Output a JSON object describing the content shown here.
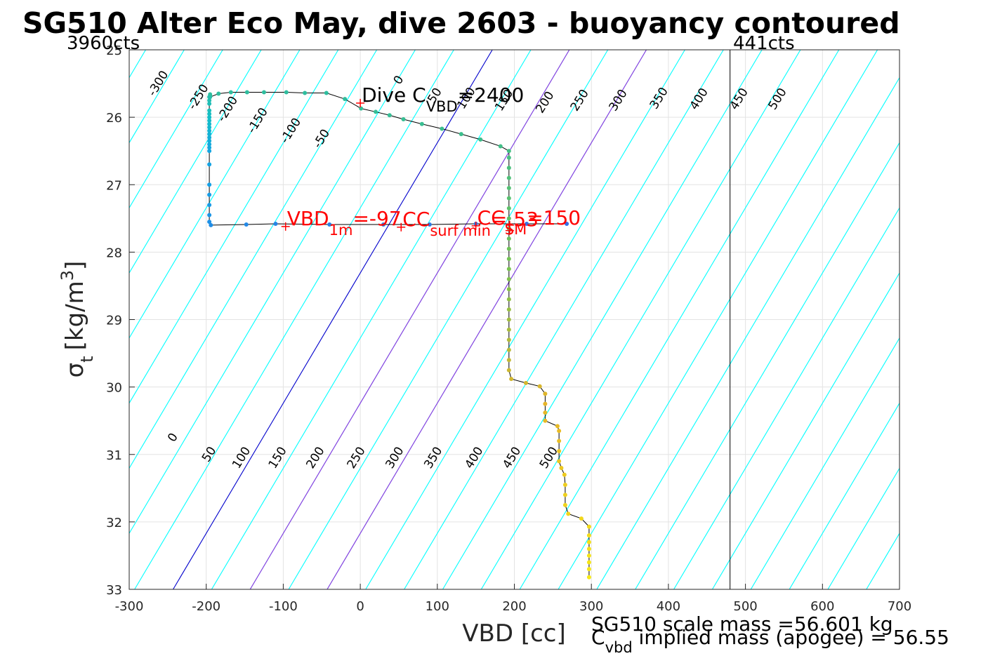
{
  "chart_data": {
    "type": "scatter",
    "title": "SG510 Alter Eco May, dive 2603 - buoyancy contoured",
    "xlabel": "VBD [cc]",
    "ylabel_main": "σ",
    "ylabel_sub": "t",
    "ylabel_unit_pre": "[kg/m",
    "ylabel_unit_sup": "3",
    "ylabel_unit_post": "]",
    "xlim": [
      -300,
      700
    ],
    "ylim": [
      25,
      33
    ],
    "y_reversed": true,
    "grid": true,
    "xticks": [
      -300,
      -200,
      -100,
      0,
      100,
      200,
      300,
      400,
      500,
      600,
      700
    ],
    "yticks": [
      25,
      26,
      27,
      28,
      29,
      30,
      31,
      32,
      33
    ],
    "corner_labels": {
      "left": "3960cts",
      "right": "441cts"
    },
    "vbd_limit_x": 480,
    "contour_lines": {
      "cyan_values": [
        -450,
        -400,
        -350,
        -300,
        -250,
        -200,
        -150,
        -100,
        -50,
        50,
        100,
        150,
        200,
        250,
        300,
        350,
        400,
        450,
        500,
        550,
        600,
        650,
        700,
        750,
        800,
        850,
        900,
        950
      ],
      "blue_values": [
        0
      ],
      "purple_values": [
        100,
        200
      ],
      "color_cyan": "#00ffff",
      "color_blue": "#0000cc",
      "color_purple": "#9933dd"
    },
    "contour_labels": [
      {
        "text": "-300",
        "x": -262,
        "y": 25.5
      },
      {
        "text": "-250",
        "x": -210,
        "y": 25.7
      },
      {
        "text": "-200",
        "x": -172,
        "y": 25.88
      },
      {
        "text": "-150",
        "x": -133,
        "y": 26.05
      },
      {
        "text": "-100",
        "x": -90,
        "y": 26.2
      },
      {
        "text": "-50",
        "x": -50,
        "y": 26.32
      },
      {
        "text": "0",
        "x": 50,
        "y": 25.45
      },
      {
        "text": "50",
        "x": 97,
        "y": 25.68
      },
      {
        "text": "100",
        "x": 138,
        "y": 25.72
      },
      {
        "text": "150",
        "x": 187,
        "y": 25.75
      },
      {
        "text": "200",
        "x": 240,
        "y": 25.78
      },
      {
        "text": "250",
        "x": 285,
        "y": 25.75
      },
      {
        "text": "300",
        "x": 335,
        "y": 25.75
      },
      {
        "text": "350",
        "x": 388,
        "y": 25.72
      },
      {
        "text": "400",
        "x": 440,
        "y": 25.73
      },
      {
        "text": "450",
        "x": 492,
        "y": 25.73
      },
      {
        "text": "500",
        "x": 542,
        "y": 25.73
      },
      {
        "text": "0",
        "x": -243,
        "y": 30.75
      },
      {
        "text": "50",
        "x": -196,
        "y": 31.0
      },
      {
        "text": "100",
        "x": -154,
        "y": 31.05
      },
      {
        "text": "150",
        "x": -107,
        "y": 31.05
      },
      {
        "text": "200",
        "x": -58,
        "y": 31.05
      },
      {
        "text": "250",
        "x": -5,
        "y": 31.05
      },
      {
        "text": "300",
        "x": 45,
        "y": 31.05
      },
      {
        "text": "350",
        "x": 95,
        "y": 31.05
      },
      {
        "text": "400",
        "x": 148,
        "y": 31.05
      },
      {
        "text": "450",
        "x": 197,
        "y": 31.05
      },
      {
        "text": "500",
        "x": 245,
        "y": 31.05
      }
    ],
    "series": [
      {
        "name": "",
        "points": [
          [
            -195,
            25.66
          ],
          [
            -195,
            25.68
          ],
          [
            -195,
            25.7
          ],
          [
            -184,
            25.65
          ],
          [
            -168,
            25.63
          ],
          [
            -147,
            25.63
          ],
          [
            -125,
            25.63
          ],
          [
            -96,
            25.63
          ],
          [
            -72,
            25.64
          ],
          [
            -44,
            25.64
          ],
          [
            -20,
            25.73
          ],
          [
            1,
            25.87
          ],
          [
            20,
            25.92
          ],
          [
            38,
            25.97
          ],
          [
            56,
            26.03
          ],
          [
            80,
            26.1
          ],
          [
            106,
            26.17
          ],
          [
            131,
            26.25
          ],
          [
            156,
            26.33
          ],
          [
            182,
            26.43
          ],
          [
            193,
            26.5
          ],
          [
            193,
            26.6
          ],
          [
            193,
            26.75
          ],
          [
            193,
            26.9
          ],
          [
            193,
            27.05
          ],
          [
            193,
            27.2
          ],
          [
            193,
            27.35
          ],
          [
            193,
            27.5
          ],
          [
            193,
            27.65
          ],
          [
            193,
            27.8
          ],
          [
            193,
            27.95
          ],
          [
            193,
            28.1
          ],
          [
            193,
            28.25
          ],
          [
            193,
            28.4
          ],
          [
            193,
            28.55
          ],
          [
            193,
            28.7
          ],
          [
            193,
            28.85
          ],
          [
            193,
            29.0
          ],
          [
            193,
            29.15
          ],
          [
            193,
            29.3
          ],
          [
            193,
            29.45
          ],
          [
            193,
            29.6
          ],
          [
            193,
            29.75
          ],
          [
            196,
            29.88
          ],
          [
            215,
            29.94
          ],
          [
            233,
            29.99
          ],
          [
            240,
            30.1
          ],
          [
            240,
            30.25
          ],
          [
            240,
            30.38
          ],
          [
            240,
            30.5
          ],
          [
            256,
            30.58
          ],
          [
            258,
            30.65
          ],
          [
            258,
            30.8
          ],
          [
            258,
            30.95
          ],
          [
            258,
            31.1
          ],
          [
            261,
            31.2
          ],
          [
            265,
            31.3
          ],
          [
            266,
            31.45
          ],
          [
            266,
            31.6
          ],
          [
            266,
            31.75
          ],
          [
            270,
            31.88
          ],
          [
            287,
            31.95
          ],
          [
            297,
            32.07
          ],
          [
            297,
            32.2
          ],
          [
            297,
            32.3
          ],
          [
            297,
            32.4
          ],
          [
            297,
            32.5
          ],
          [
            297,
            32.6
          ],
          [
            297,
            32.7
          ],
          [
            297,
            32.82
          ]
        ]
      },
      {
        "name": "",
        "points": [
          [
            268,
            27.58
          ],
          [
            216,
            27.58
          ],
          [
            150,
            27.58
          ],
          [
            90,
            27.59
          ],
          [
            30,
            27.59
          ],
          [
            -40,
            27.59
          ],
          [
            -110,
            27.58
          ],
          [
            -148,
            27.59
          ],
          [
            -194,
            27.6
          ],
          [
            -196,
            27.55
          ],
          [
            -196,
            27.45
          ],
          [
            -196,
            27.3
          ],
          [
            -196,
            27.15
          ],
          [
            -196,
            27.0
          ],
          [
            -196,
            26.7
          ],
          [
            -196,
            26.5
          ],
          [
            -196,
            26.45
          ],
          [
            -196,
            26.4
          ],
          [
            -196,
            26.35
          ],
          [
            -196,
            26.3
          ],
          [
            -196,
            26.25
          ],
          [
            -196,
            26.2
          ],
          [
            -196,
            26.15
          ],
          [
            -196,
            26.1
          ],
          [
            -196,
            26.05
          ],
          [
            -196,
            26.0
          ],
          [
            -196,
            25.95
          ],
          [
            -196,
            25.9
          ],
          [
            -196,
            25.8
          ],
          [
            -196,
            25.75
          ],
          [
            -196,
            25.7
          ]
        ]
      }
    ],
    "markers": [
      {
        "x": 0,
        "y": 25.79,
        "label": "Dive C",
        "label_sub": "VBD",
        "label_post": "=2400",
        "color": "#000000"
      },
      {
        "x": -97,
        "y": 27.62,
        "label": "VBD",
        "label_sub": "1m",
        "label_post": "=-97",
        "color": "#ff0000"
      },
      {
        "x": 150,
        "y": 27.61,
        "label": "CC",
        "label_sub": "SM",
        "label_post": "=150",
        "color": "#ff0000"
      },
      {
        "x": 53,
        "y": 27.63,
        "label": "CC",
        "label_sub": "surf min",
        "label_post": "= 53",
        "color": "#ff0000"
      },
      {
        "x": 194,
        "y": 27.6,
        "label": "",
        "label_sub": "",
        "label_post": "",
        "color": "#ff0000"
      },
      {
        "x": 194,
        "y": 27.68,
        "label": "",
        "label_sub": "",
        "label_post": "",
        "color": "#ff0000"
      }
    ],
    "footer": {
      "line1": "SG510 scale mass =56.601 kg",
      "line2_pre": "C",
      "line2_sub": "vbd",
      "line2_post": " implied mass (apogee) = 56.55"
    }
  }
}
